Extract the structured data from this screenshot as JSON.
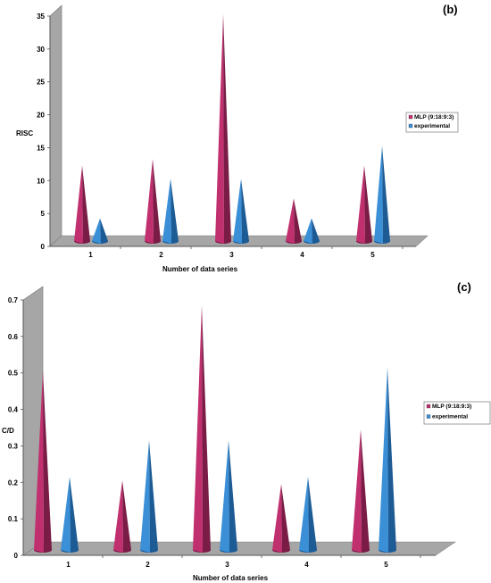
{
  "colors": {
    "mlp": "#c0306e",
    "mlp_dark": "#7a1c46",
    "experimental": "#3a8fd6",
    "experimental_dark": "#1d5b95",
    "wall": "#a6a6a6",
    "floor": "#a6a6a6",
    "floor_edge": "#808080"
  },
  "chart_data": [
    {
      "type": "bar",
      "panel_label": "(b)",
      "xlabel": "Number of data series",
      "ylabel": "RISC",
      "categories": [
        "1",
        "2",
        "3",
        "4",
        "5"
      ],
      "ylim": [
        0,
        35
      ],
      "yticks": [
        "0",
        "5",
        "10",
        "15",
        "20",
        "25",
        "30",
        "35"
      ],
      "legend_position": "right",
      "series": [
        {
          "name": "MLP (9:18:9:3)",
          "values": [
            12,
            13,
            35,
            7,
            12
          ]
        },
        {
          "name": "experimental",
          "values": [
            4,
            10,
            10,
            4,
            15
          ]
        }
      ]
    },
    {
      "type": "bar",
      "panel_label": "(c)",
      "xlabel": "Number of data series",
      "ylabel": "C/D",
      "categories": [
        "1",
        "2",
        "3",
        "4",
        "5"
      ],
      "ylim": [
        0,
        0.7
      ],
      "yticks": [
        "0",
        "0.1",
        "0.2",
        "0.3",
        "0.4",
        "0.5",
        "0.6",
        "0.7"
      ],
      "legend_position": "right",
      "series": [
        {
          "name": "MLP (9:18:9:3)",
          "values": [
            0.5,
            0.2,
            0.68,
            0.19,
            0.34
          ]
        },
        {
          "name": "experimental",
          "values": [
            0.21,
            0.31,
            0.31,
            0.21,
            0.51
          ]
        }
      ]
    }
  ]
}
